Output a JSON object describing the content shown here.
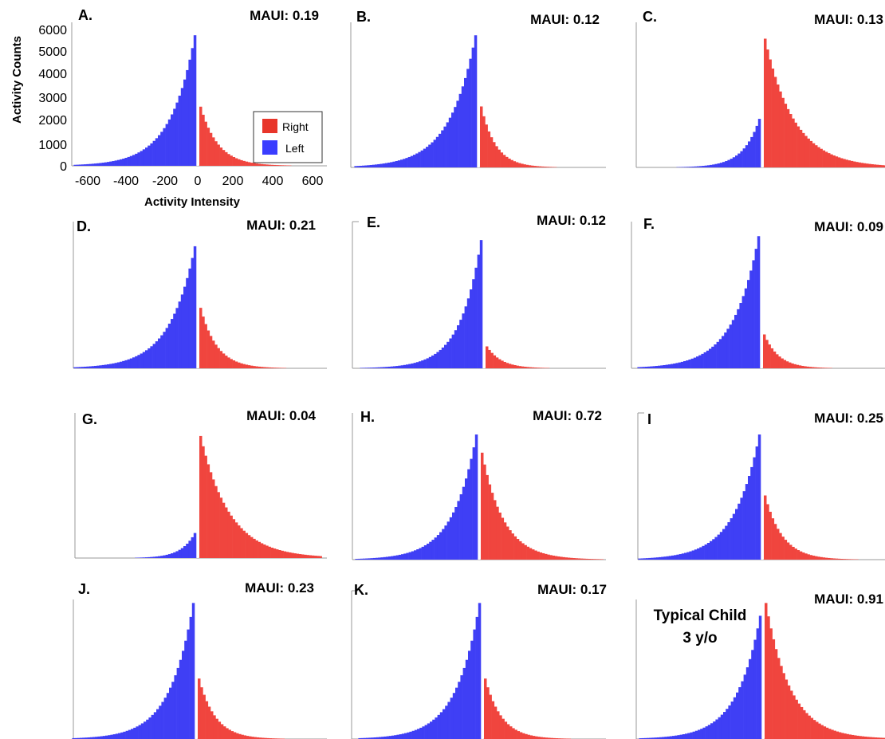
{
  "figure": {
    "y_axis_label": "Activity Counts",
    "x_axis_label": "Activity Intensity",
    "legend": [
      {
        "label": "Right",
        "color": "#e8352a"
      },
      {
        "label": "Left",
        "color": "#3a3dff"
      }
    ]
  },
  "colors": {
    "right": "#f0453e",
    "left": "#3f3ff5",
    "axis": "#9a9a9a"
  },
  "chart_data": [
    {
      "type": "bar",
      "panel": "A.",
      "maui": "MAUI: 0.19",
      "peak_left": 5850,
      "peak_right": 2650,
      "decay_left": 68,
      "decay_right": 48,
      "x_ticks": [
        "-600",
        "-400",
        "-200",
        "0",
        "200",
        "400",
        "600"
      ],
      "y_ticks": [
        "0",
        "1000",
        "2000",
        "3000",
        "4000",
        "5000",
        "6000"
      ],
      "xlim": [
        -600,
        600
      ],
      "ylim": [
        0,
        6000
      ],
      "legend_position": "right"
    },
    {
      "type": "bar",
      "panel": "B.",
      "maui": "MAUI: 0.12",
      "peak_left": 5850,
      "peak_right": 2700,
      "decay_left": 72,
      "decay_right": 40
    },
    {
      "type": "bar",
      "panel": "C.",
      "maui": "MAUI: 0.13",
      "peak_left": 2150,
      "peak_right": 5700,
      "decay_left": 45,
      "decay_right": 80
    },
    {
      "type": "bar",
      "panel": "D.",
      "maui": "MAUI: 0.21",
      "peak_left": 5850,
      "peak_right": 2900,
      "decay_left": 70,
      "decay_right": 45
    },
    {
      "type": "bar",
      "panel": "E.",
      "maui": "MAUI: 0.12",
      "peak_left": 5850,
      "peak_right": 1000,
      "decay_left": 58,
      "decay_right": 40
    },
    {
      "type": "bar",
      "panel": "F.",
      "maui": "MAUI: 0.09",
      "peak_left": 5850,
      "peak_right": 1500,
      "decay_left": 70,
      "decay_right": 40
    },
    {
      "type": "bar",
      "panel": "G.",
      "maui": "MAUI: 0.04",
      "peak_left": 1200,
      "peak_right": 5850,
      "decay_left": 38,
      "decay_right": 80
    },
    {
      "type": "bar",
      "panel": "H.",
      "maui": "MAUI: 0.72",
      "peak_left": 5850,
      "peak_right": 5000,
      "decay_left": 65,
      "decay_right": 60
    },
    {
      "type": "bar",
      "panel": "I",
      "maui": "MAUI: 0.25",
      "peak_left": 5850,
      "peak_right": 3000,
      "decay_left": 70,
      "decay_right": 48
    },
    {
      "type": "bar",
      "panel": "J.",
      "maui": "MAUI: 0.23",
      "peak_left": 5850,
      "peak_right": 2600,
      "decay_left": 65,
      "decay_right": 45
    },
    {
      "type": "bar",
      "panel": "K.",
      "maui": "MAUI: 0.17",
      "peak_left": 5850,
      "peak_right": 2600,
      "decay_left": 65,
      "decay_right": 45
    },
    {
      "type": "bar",
      "panel": "Typical Child|3 y/o",
      "maui": "MAUI: 0.91",
      "peak_left": 5300,
      "peak_right": 5850,
      "decay_left": 65,
      "decay_right": 68
    }
  ]
}
